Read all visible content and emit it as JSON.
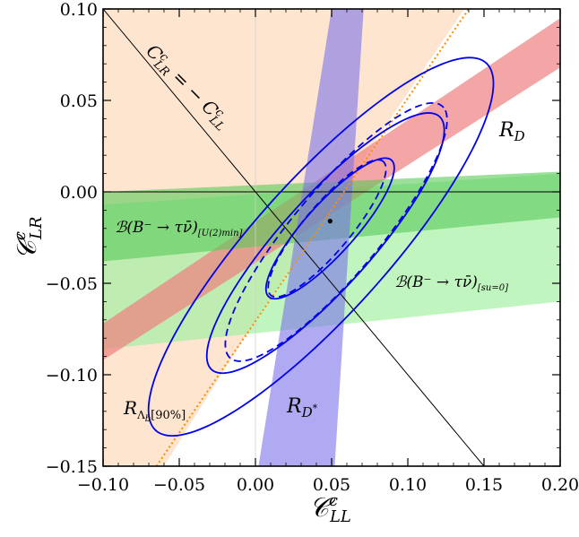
{
  "chart_data": {
    "type": "scatter",
    "title": "",
    "xlabel": "𝒞",
    "xlabel_sup": "c",
    "xlabel_sub": "LL",
    "ylabel": "𝒞",
    "ylabel_sup": "c",
    "ylabel_sub": "LR",
    "xlim": [
      -0.1,
      0.2
    ],
    "ylim": [
      -0.15,
      0.1
    ],
    "x_ticks": [
      -0.1,
      -0.05,
      0.0,
      0.05,
      0.1,
      0.15,
      0.2
    ],
    "x_tick_labels": [
      "−0.10",
      "−0.05",
      "0.00",
      "0.05",
      "0.10",
      "0.15",
      "0.20"
    ],
    "y_ticks": [
      -0.15,
      -0.1,
      -0.05,
      0.0,
      0.05,
      0.1
    ],
    "y_tick_labels": [
      "−0.15",
      "−0.10",
      "−0.05",
      "0.00",
      "0.05",
      "0.10"
    ],
    "grid": false,
    "best_fit_point": {
      "x": 0.049,
      "y": -0.016
    },
    "reference_line": {
      "equation": "C_LR = -C_LL",
      "points": [
        [
          -0.1,
          0.1
        ],
        [
          0.15,
          -0.15
        ]
      ],
      "label_left": "C",
      "label_left_sup": "c",
      "label_left_sub": "LR",
      "label_eq": "= −",
      "label_right": "C",
      "label_right_sup": "c",
      "label_right_sub": "LL"
    },
    "regions": [
      {
        "id": "R_Lambda_b",
        "label_main": "R",
        "label_sub": "Λ",
        "label_sub2": "b",
        "label_tail": "[90%]",
        "color": "#fde1c8",
        "boundary_points": [
          [
            -0.1,
            0.1
          ],
          [
            0.137,
            0.1
          ],
          [
            0.0,
            -0.07
          ],
          [
            -0.06,
            -0.15
          ],
          [
            -0.1,
            -0.15
          ]
        ]
      },
      {
        "id": "R_D",
        "label_main": "R",
        "label_sub": "D",
        "color": "#f08080",
        "lower_edge": [
          [
            -0.1,
            -0.092
          ],
          [
            0.2,
            0.068
          ]
        ],
        "upper_edge": [
          [
            -0.1,
            -0.072
          ],
          [
            0.2,
            0.095
          ]
        ]
      },
      {
        "id": "R_Dstar",
        "label_main": "R",
        "label_sub": "D",
        "label_sub_sup": "*",
        "color": "#7b72e9",
        "polygon": [
          [
            0.05,
            0.1
          ],
          [
            0.071,
            0.1
          ],
          [
            0.052,
            -0.15
          ],
          [
            0.002,
            -0.15
          ]
        ]
      },
      {
        "id": "B_U2min",
        "label": "ℬ(B⁻ → τν̄)",
        "label_sub": "[U(2)min]",
        "color": "#58c958",
        "lower_edge": [
          [
            -0.1,
            -0.038
          ],
          [
            0.2,
            -0.014
          ]
        ],
        "upper_edge": [
          [
            -0.1,
            0.0
          ],
          [
            0.2,
            0.011
          ]
        ]
      },
      {
        "id": "B_su0",
        "label": "ℬ(B⁻ → τν̄)",
        "label_sub": "[su=0]",
        "color": "#9ef09e",
        "lower_edge": [
          [
            -0.1,
            -0.086
          ],
          [
            0.2,
            -0.06
          ]
        ],
        "upper_edge": [
          [
            -0.1,
            -0.007
          ],
          [
            0.2,
            0.01
          ]
        ]
      }
    ],
    "contours": [
      {
        "level": "1σ",
        "style": "solid",
        "color": "#0000ee",
        "cx": 0.049,
        "cy": -0.02,
        "rx": 0.055,
        "ry": 0.015,
        "angle_deg": 42
      },
      {
        "level": "2σ",
        "style": "solid",
        "color": "#0000ee",
        "cx": 0.046,
        "cy": -0.028,
        "rx": 0.102,
        "ry": 0.027,
        "angle_deg": 42
      },
      {
        "level": "3σ",
        "style": "solid",
        "color": "#0000ee",
        "cx": 0.043,
        "cy": -0.03,
        "rx": 0.148,
        "ry": 0.04,
        "angle_deg": 42
      },
      {
        "level": "1σ",
        "style": "dashed",
        "color": "#0000ee",
        "cx": 0.047,
        "cy": -0.02,
        "rx": 0.052,
        "ry": 0.014,
        "angle_deg": 44
      },
      {
        "level": "2σ",
        "style": "dashed",
        "color": "#0000ee",
        "cx": 0.053,
        "cy": -0.022,
        "rx": 0.098,
        "ry": 0.026,
        "angle_deg": 44
      }
    ],
    "dotted_line": {
      "color": "#ff8c00",
      "points": [
        [
          -0.065,
          -0.15
        ],
        [
          0.14,
          0.1
        ]
      ]
    }
  }
}
